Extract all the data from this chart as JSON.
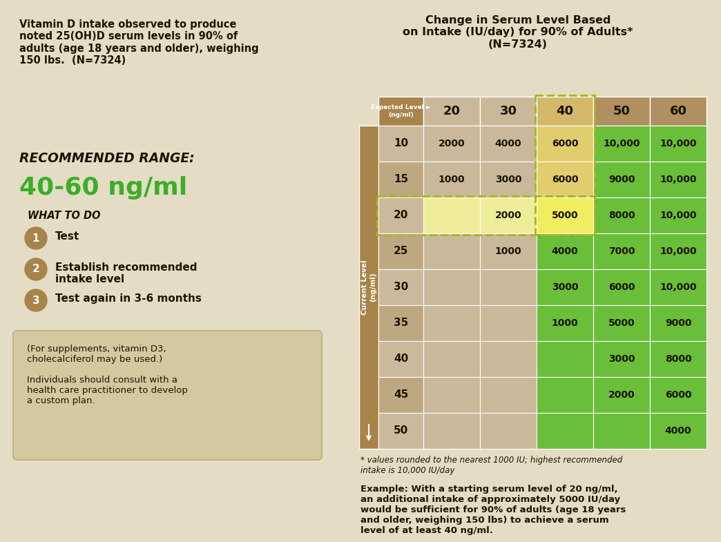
{
  "bg_color": "#e5dcc5",
  "title_right": "Change in Serum Level Based\non Intake (IU/day) for 90% of Adults*\n(N=7324)",
  "left_title": "Vitamin D intake observed to produce\nnoted 25(OH)D serum levels in 90% of\nadults (age 18 years and older), weighing\n150 lbs.  (N=7324)",
  "recommended_range_label": "RECOMMENDED RANGE:",
  "recommended_range_value": "40-60 ng/ml",
  "what_to_do": "WHAT TO DO",
  "steps": [
    "Test",
    "Establish recommended\nintake level",
    "Test again in 3-6 months"
  ],
  "supplement_note": "(For supplements, vitamin D3,\ncholecalciferol may be used.)\n\nIndividuals should consult with a\nhealth care practitioner to develop\na custom plan.",
  "example_text": "Example: With a starting serum level of 20 ng/ml,\nan additional intake of approximately 5000 IU/day\nwould be sufficient for 90% of adults (age 18 years\nand older, weighing 150 lbs) to achieve a serum\nlevel of at least 40 ng/ml.",
  "footnote": "* values rounded to the nearest 1000 IU; highest recommended\nintake is 10,000 IU/day",
  "col_headers": [
    "20",
    "30",
    "40",
    "50",
    "60"
  ],
  "row_headers": [
    "10",
    "15",
    "20",
    "25",
    "30",
    "35",
    "40",
    "45",
    "50"
  ],
  "table_data": [
    [
      "2000",
      "4000",
      "6000",
      "10,000",
      "10,000"
    ],
    [
      "1000",
      "3000",
      "6000",
      "9000",
      "10,000"
    ],
    [
      "",
      "2000",
      "5000",
      "8000",
      "10,000"
    ],
    [
      "",
      "1000",
      "4000",
      "7000",
      "10,000"
    ],
    [
      "",
      "",
      "3000",
      "6000",
      "10,000"
    ],
    [
      "",
      "",
      "1000",
      "5000",
      "9000"
    ],
    [
      "",
      "",
      "",
      "3000",
      "8000"
    ],
    [
      "",
      "",
      "",
      "2000",
      "6000"
    ],
    [
      "",
      "",
      "",
      "",
      "4000"
    ]
  ],
  "cell_colors": [
    [
      "#c9b99a",
      "#c9b99a",
      "#e2cd6e",
      "#6abe3a",
      "#6abe3a"
    ],
    [
      "#c9b99a",
      "#c9b99a",
      "#e2cd6e",
      "#6abe3a",
      "#6abe3a"
    ],
    [
      "#f0ed9a",
      "#f0ed9a",
      "#f0ed60",
      "#6abe3a",
      "#6abe3a"
    ],
    [
      "#c9b99a",
      "#c9b99a",
      "#6abe3a",
      "#6abe3a",
      "#6abe3a"
    ],
    [
      "#c9b99a",
      "#c9b99a",
      "#6abe3a",
      "#6abe3a",
      "#6abe3a"
    ],
    [
      "#c9b99a",
      "#c9b99a",
      "#6abe3a",
      "#6abe3a",
      "#6abe3a"
    ],
    [
      "#c9b99a",
      "#c9b99a",
      "#6abe3a",
      "#6abe3a",
      "#6abe3a"
    ],
    [
      "#c9b99a",
      "#c9b99a",
      "#6abe3a",
      "#6abe3a",
      "#6abe3a"
    ],
    [
      "#c9b99a",
      "#c9b99a",
      "#6abe3a",
      "#6abe3a",
      "#6abe3a"
    ]
  ],
  "col_header_colors": [
    "#c9b99a",
    "#c9b99a",
    "#d4b86a",
    "#b09060",
    "#b09060"
  ],
  "row_header_color_even": "#cbb99c",
  "row_header_color_odd": "#bea882",
  "current_level_col_color": "#a8844a",
  "corner_cell_color": "#a8844a",
  "circle_color": "#a8844a",
  "green_text_color": "#3aaf25",
  "dark_text_color": "#1a1400",
  "note_box_color": "#d4c8a0",
  "note_box_edge": "#c0b488"
}
